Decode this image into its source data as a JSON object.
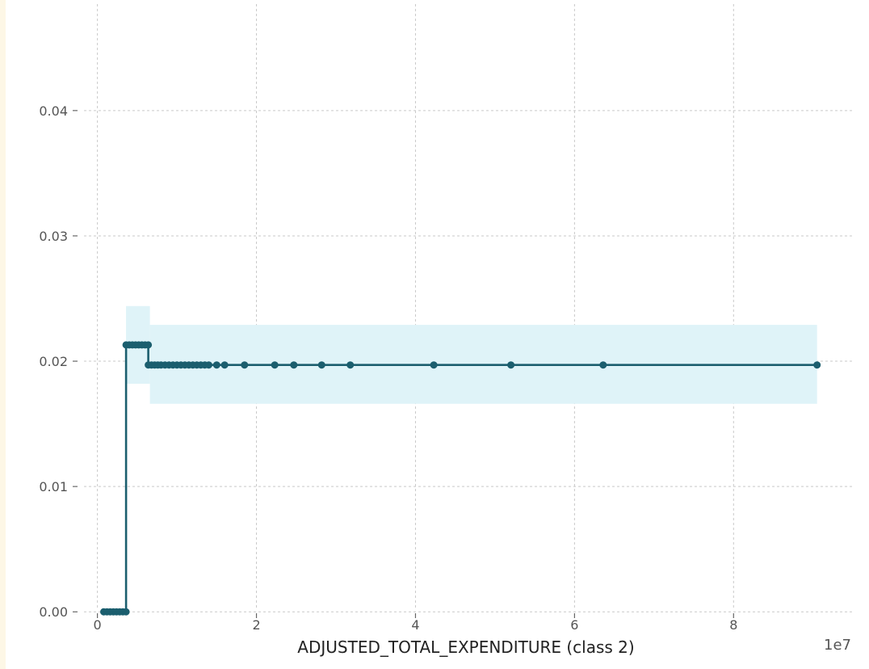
{
  "chart_data": {
    "type": "line",
    "title": "",
    "xlabel": "ADJUSTED_TOTAL_EXPENDITURE (class 2)",
    "ylabel": "",
    "x_offset_label": "1e7",
    "xlim": [
      -0.25,
      9.5
    ],
    "ylim": [
      -0.0005,
      0.0485
    ],
    "x_ticks": [
      0,
      2,
      4,
      6,
      8
    ],
    "x_tick_labels": [
      "0",
      "2",
      "4",
      "6",
      "8"
    ],
    "y_ticks": [
      0.0,
      0.01,
      0.02,
      0.03,
      0.04
    ],
    "y_tick_labels": [
      "0.00",
      "0.01",
      "0.02",
      "0.03",
      "0.04"
    ],
    "grid": true,
    "legend": "none",
    "colors": {
      "line": "#1b5e6e",
      "band": "#dff3f8"
    },
    "series": [
      {
        "x": [
          0.08,
          0.12,
          0.16,
          0.2,
          0.24,
          0.28,
          0.32,
          0.36,
          0.36,
          0.4,
          0.44,
          0.48,
          0.52,
          0.56,
          0.6,
          0.64,
          0.64,
          0.68,
          0.72,
          0.76,
          0.8,
          0.85,
          0.9,
          0.95,
          1.0,
          1.05,
          1.1,
          1.15,
          1.2,
          1.25,
          1.3,
          1.35,
          1.4,
          1.5,
          1.6,
          1.85,
          2.23,
          2.47,
          2.82,
          3.18,
          4.23,
          5.2,
          6.36,
          9.05
        ],
        "y": [
          0.0,
          0.0,
          0.0,
          0.0,
          0.0,
          0.0,
          0.0,
          0.0,
          0.0213,
          0.0213,
          0.0213,
          0.0213,
          0.0213,
          0.0213,
          0.0213,
          0.0213,
          0.0197,
          0.0197,
          0.0197,
          0.0197,
          0.0197,
          0.0197,
          0.0197,
          0.0197,
          0.0197,
          0.0197,
          0.0197,
          0.0197,
          0.0197,
          0.0197,
          0.0197,
          0.0197,
          0.0197,
          0.0197,
          0.0197,
          0.0197,
          0.0197,
          0.0197,
          0.0197,
          0.0197,
          0.0197,
          0.0197,
          0.0197,
          0.0197
        ]
      }
    ],
    "confidence_band": [
      {
        "x_start": 0.36,
        "x_end": 0.66,
        "lower": 0.0182,
        "upper": 0.0244
      },
      {
        "x_start": 0.66,
        "x_end": 9.05,
        "lower": 0.0166,
        "upper": 0.0229
      }
    ]
  }
}
